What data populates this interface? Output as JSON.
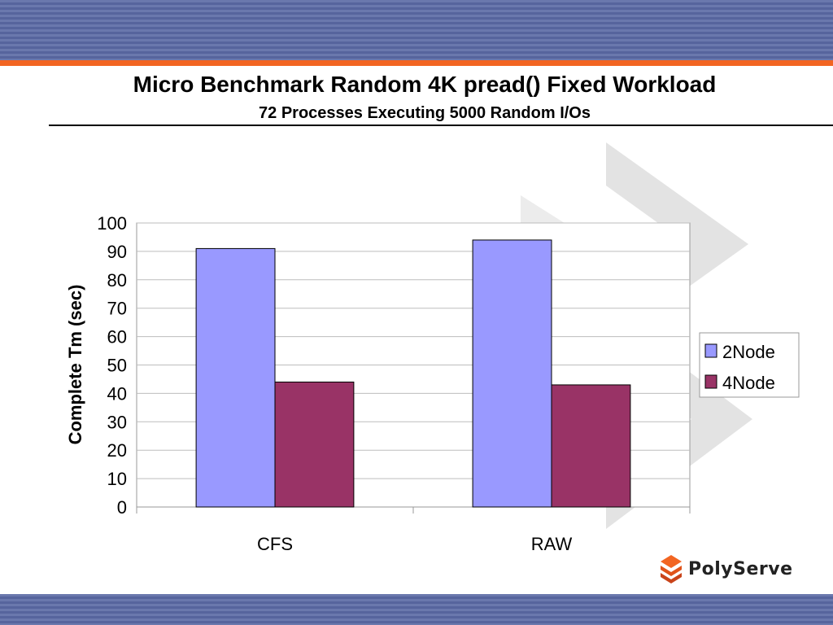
{
  "slide": {
    "title": "Micro Benchmark Random 4K pread() Fixed Workload",
    "subtitle": "72 Processes Executing 5000 Random I/Os",
    "logo_text": "PolyServe",
    "colors": {
      "band": "#5f6da6",
      "accent": "#f26522"
    }
  },
  "chart_data": {
    "type": "bar",
    "categories": [
      "CFS",
      "RAW"
    ],
    "series": [
      {
        "name": "2Node",
        "color": "#9999ff",
        "values": [
          91,
          94
        ]
      },
      {
        "name": "4Node",
        "color": "#993366",
        "values": [
          44,
          43
        ]
      }
    ],
    "title": "Micro Benchmark Random 4K pread() Fixed Workload",
    "subtitle": "72 Processes Executing 5000 Random I/Os",
    "xlabel": "",
    "ylabel": "Complete Tm (sec)",
    "ylim": [
      0,
      100
    ],
    "yticks": [
      0,
      10,
      20,
      30,
      40,
      50,
      60,
      70,
      80,
      90,
      100
    ],
    "grid": true,
    "legend": "right"
  }
}
